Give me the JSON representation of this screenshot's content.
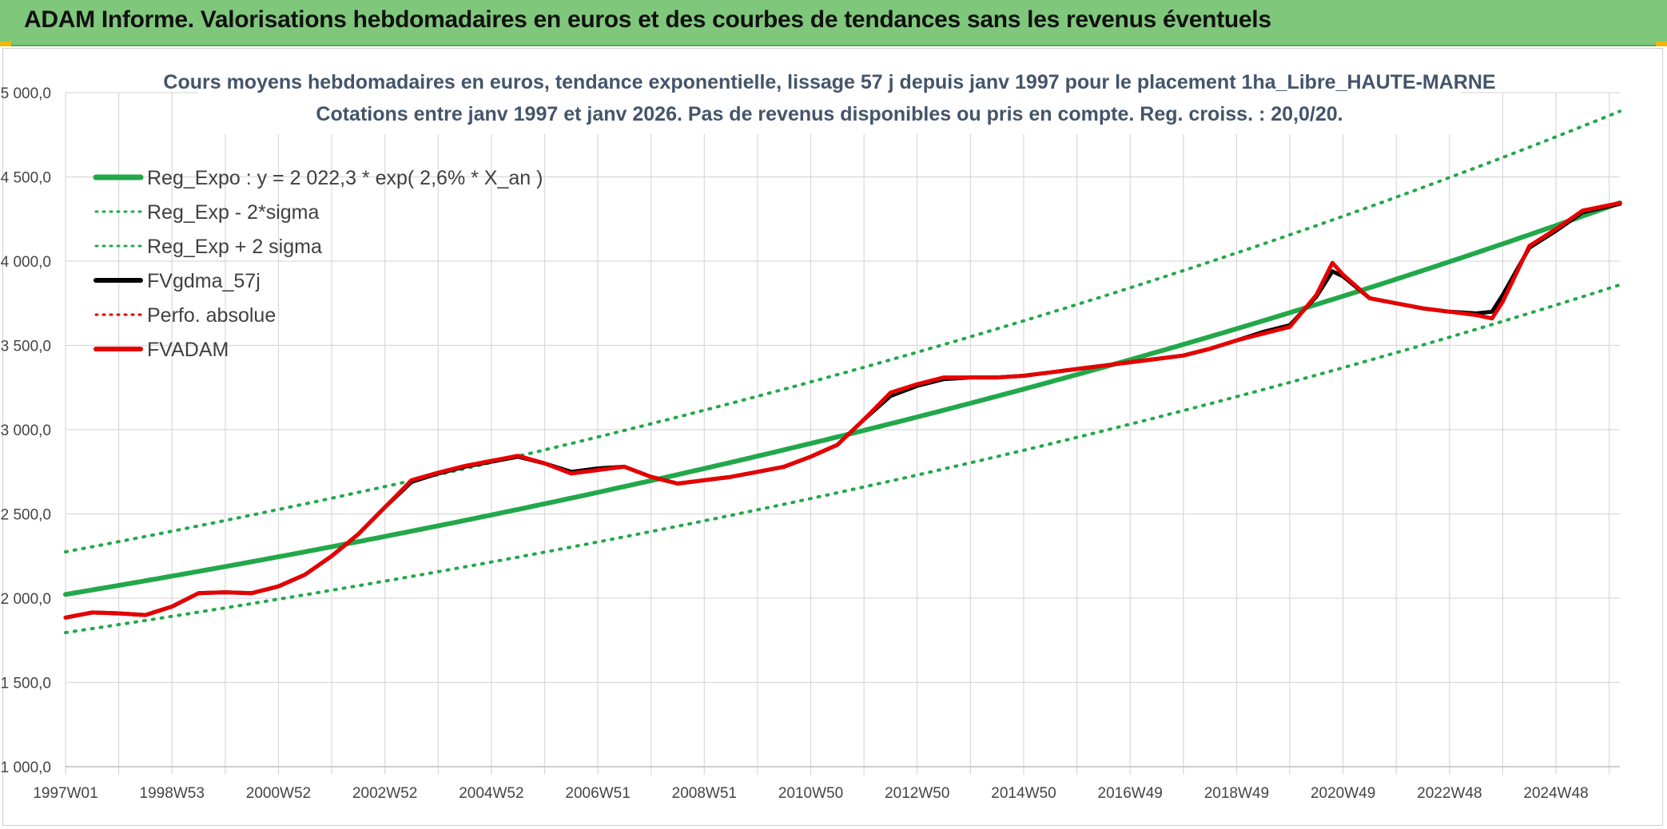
{
  "header": {
    "title": "ADAM Informe. Valorisations hebdomadaires en euros et des courbes de tendances sans les revenus éventuels",
    "accent_color": "#7fc77b"
  },
  "chart_data": {
    "type": "line",
    "title": "Cours moyens hebdomadaires en euros, tendance exponentielle, lissage 57 j depuis janv 1997 pour le placement 1ha_Libre_HAUTE-MARNE",
    "subtitle": "Cotations entre janv 1997 et janv 2026. Pas de revenus disponibles ou pris en compte. Reg. croiss. : 20,0/20.",
    "xlabel": "",
    "ylabel": "",
    "ylim": [
      1000,
      5000
    ],
    "y_ticks": [
      "1 000,0",
      "1 500,0",
      "2 000,0",
      "2 500,0",
      "3 000,0",
      "3 500,0",
      "4 000,0",
      "4 500,0",
      "5 000,0"
    ],
    "xlim": [
      1997.0,
      2026.2
    ],
    "x_ticks": [
      "1997W01",
      "1998W53",
      "2000W52",
      "2002W52",
      "2004W52",
      "2006W51",
      "2008W51",
      "2010W50",
      "2012W50",
      "2014W50",
      "2016W49",
      "2018W49",
      "2020W49",
      "2022W48",
      "2024W48"
    ],
    "x_tick_years": [
      1997.0,
      1999.0,
      2001.0,
      2003.0,
      2005.0,
      2007.0,
      2009.0,
      2011.0,
      2013.0,
      2015.0,
      2017.0,
      2019.0,
      2021.0,
      2023.0,
      2025.0
    ],
    "grid": true,
    "legend_position": "top-left",
    "series": [
      {
        "name": "Reg_Expo : y = 2 022,3 * exp( 2,6% *  X_an )",
        "color": "#22a84a",
        "style": "solid",
        "width": 6,
        "trend": {
          "a": 2022.3,
          "b": 0.0262,
          "mult": 1.0,
          "x0": 1997.0
        }
      },
      {
        "name": "Reg_Exp - 2*sigma",
        "color": "#22a84a",
        "style": "dotted",
        "width": 4,
        "trend": {
          "a": 2022.3,
          "b": 0.0262,
          "mult": 0.888,
          "x0": 1997.0
        }
      },
      {
        "name": "Reg_Exp + 2 sigma",
        "color": "#22a84a",
        "style": "dotted",
        "width": 4,
        "trend": {
          "a": 2022.3,
          "b": 0.0262,
          "mult": 1.125,
          "x0": 1997.0
        }
      },
      {
        "name": "FVgdma_57j",
        "color": "#000000",
        "style": "solid",
        "width": 5,
        "points": [
          [
            1997.0,
            1885
          ],
          [
            1997.5,
            1915
          ],
          [
            1998.0,
            1910
          ],
          [
            1998.5,
            1900
          ],
          [
            1999.0,
            1950
          ],
          [
            1999.5,
            2030
          ],
          [
            2000.0,
            2035
          ],
          [
            2000.5,
            2030
          ],
          [
            2001.0,
            2070
          ],
          [
            2001.5,
            2140
          ],
          [
            2002.0,
            2250
          ],
          [
            2002.5,
            2380
          ],
          [
            2003.0,
            2540
          ],
          [
            2003.5,
            2690
          ],
          [
            2004.0,
            2740
          ],
          [
            2004.5,
            2780
          ],
          [
            2005.0,
            2810
          ],
          [
            2005.5,
            2840
          ],
          [
            2006.0,
            2800
          ],
          [
            2006.5,
            2750
          ],
          [
            2007.0,
            2770
          ],
          [
            2007.5,
            2780
          ],
          [
            2008.0,
            2720
          ],
          [
            2008.5,
            2680
          ],
          [
            2009.0,
            2700
          ],
          [
            2009.5,
            2720
          ],
          [
            2010.0,
            2750
          ],
          [
            2010.5,
            2780
          ],
          [
            2011.0,
            2840
          ],
          [
            2011.5,
            2910
          ],
          [
            2012.0,
            3060
          ],
          [
            2012.5,
            3200
          ],
          [
            2013.0,
            3260
          ],
          [
            2013.5,
            3300
          ],
          [
            2014.0,
            3310
          ],
          [
            2014.5,
            3310
          ],
          [
            2015.0,
            3320
          ],
          [
            2015.5,
            3340
          ],
          [
            2016.0,
            3360
          ],
          [
            2016.5,
            3380
          ],
          [
            2017.0,
            3400
          ],
          [
            2017.5,
            3420
          ],
          [
            2018.0,
            3440
          ],
          [
            2018.5,
            3480
          ],
          [
            2019.0,
            3530
          ],
          [
            2019.5,
            3580
          ],
          [
            2020.0,
            3620
          ],
          [
            2020.5,
            3790
          ],
          [
            2020.8,
            3940
          ],
          [
            2021.0,
            3910
          ],
          [
            2021.5,
            3780
          ],
          [
            2022.0,
            3750
          ],
          [
            2022.5,
            3720
          ],
          [
            2023.0,
            3700
          ],
          [
            2023.5,
            3690
          ],
          [
            2023.8,
            3700
          ],
          [
            2024.0,
            3800
          ],
          [
            2024.5,
            4080
          ],
          [
            2025.0,
            4180
          ],
          [
            2025.5,
            4290
          ],
          [
            2026.2,
            4340
          ]
        ]
      },
      {
        "name": "Perfo. absolue",
        "color": "#e00000",
        "style": "dotted",
        "width": 2,
        "points": []
      },
      {
        "name": "FVADAM",
        "color": "#e60000",
        "style": "solid",
        "width": 5,
        "points": [
          [
            1997.0,
            1885
          ],
          [
            1997.5,
            1915
          ],
          [
            1998.0,
            1910
          ],
          [
            1998.5,
            1900
          ],
          [
            1999.0,
            1950
          ],
          [
            1999.5,
            2030
          ],
          [
            2000.0,
            2035
          ],
          [
            2000.5,
            2030
          ],
          [
            2001.0,
            2070
          ],
          [
            2001.5,
            2140
          ],
          [
            2002.0,
            2250
          ],
          [
            2002.5,
            2380
          ],
          [
            2003.0,
            2540
          ],
          [
            2003.5,
            2700
          ],
          [
            2004.0,
            2745
          ],
          [
            2004.5,
            2785
          ],
          [
            2005.0,
            2815
          ],
          [
            2005.5,
            2845
          ],
          [
            2006.0,
            2800
          ],
          [
            2006.5,
            2740
          ],
          [
            2007.0,
            2760
          ],
          [
            2007.5,
            2780
          ],
          [
            2008.0,
            2720
          ],
          [
            2008.5,
            2680
          ],
          [
            2009.0,
            2700
          ],
          [
            2009.5,
            2720
          ],
          [
            2010.0,
            2750
          ],
          [
            2010.5,
            2780
          ],
          [
            2011.0,
            2840
          ],
          [
            2011.5,
            2910
          ],
          [
            2012.0,
            3060
          ],
          [
            2012.5,
            3220
          ],
          [
            2013.0,
            3270
          ],
          [
            2013.5,
            3310
          ],
          [
            2014.0,
            3310
          ],
          [
            2014.5,
            3310
          ],
          [
            2015.0,
            3320
          ],
          [
            2015.5,
            3340
          ],
          [
            2016.0,
            3360
          ],
          [
            2016.5,
            3380
          ],
          [
            2017.0,
            3400
          ],
          [
            2017.5,
            3420
          ],
          [
            2018.0,
            3440
          ],
          [
            2018.5,
            3480
          ],
          [
            2019.0,
            3530
          ],
          [
            2019.5,
            3570
          ],
          [
            2020.0,
            3610
          ],
          [
            2020.5,
            3800
          ],
          [
            2020.8,
            3990
          ],
          [
            2021.0,
            3920
          ],
          [
            2021.5,
            3780
          ],
          [
            2022.0,
            3750
          ],
          [
            2022.5,
            3720
          ],
          [
            2023.0,
            3700
          ],
          [
            2023.5,
            3680
          ],
          [
            2023.8,
            3660
          ],
          [
            2024.0,
            3760
          ],
          [
            2024.5,
            4090
          ],
          [
            2025.0,
            4190
          ],
          [
            2025.5,
            4300
          ],
          [
            2026.2,
            4345
          ]
        ]
      }
    ]
  }
}
